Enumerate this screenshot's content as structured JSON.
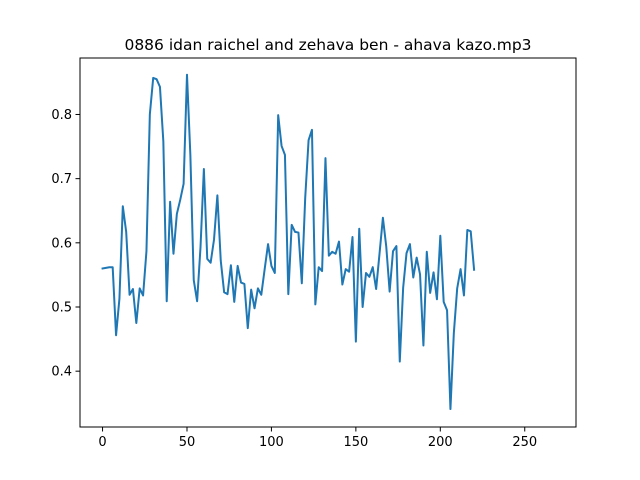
{
  "chart_data": {
    "type": "line",
    "title": "0886 idan raichel and zehava ben - ahava kazo.mp3",
    "xlabel": "",
    "ylabel": "",
    "xlim": [
      -13.35,
      280.35
    ],
    "ylim": [
      0.313,
      0.888
    ],
    "x_ticks": [
      0,
      50,
      100,
      150,
      200,
      250
    ],
    "y_ticks": [
      0.4,
      0.5,
      0.6,
      0.7,
      0.8
    ],
    "x_tick_labels": [
      "0",
      "50",
      "100",
      "150",
      "200",
      "250"
    ],
    "y_tick_labels": [
      "0.4",
      "0.5",
      "0.6",
      "0.7",
      "0.8"
    ],
    "grid": false,
    "series": [
      {
        "color": "#1f77b4",
        "x_start": 0,
        "x_step": 2,
        "values": [
          0.56,
          0.561,
          0.562,
          0.562,
          0.456,
          0.513,
          0.657,
          0.617,
          0.519,
          0.528,
          0.475,
          0.529,
          0.518,
          0.587,
          0.8,
          0.857,
          0.855,
          0.843,
          0.758,
          0.509,
          0.664,
          0.583,
          0.645,
          0.667,
          0.692,
          0.862,
          0.737,
          0.542,
          0.509,
          0.593,
          0.715,
          0.575,
          0.569,
          0.605,
          0.674,
          0.572,
          0.523,
          0.52,
          0.565,
          0.508,
          0.564,
          0.538,
          0.536,
          0.467,
          0.527,
          0.498,
          0.529,
          0.519,
          0.559,
          0.598,
          0.564,
          0.553,
          0.799,
          0.751,
          0.737,
          0.52,
          0.628,
          0.617,
          0.616,
          0.537,
          0.67,
          0.76,
          0.776,
          0.504,
          0.562,
          0.556,
          0.732,
          0.58,
          0.586,
          0.583,
          0.602,
          0.535,
          0.559,
          0.555,
          0.609,
          0.446,
          0.622,
          0.5,
          0.553,
          0.547,
          0.562,
          0.528,
          0.583,
          0.639,
          0.594,
          0.524,
          0.587,
          0.595,
          0.415,
          0.53,
          0.584,
          0.598,
          0.546,
          0.577,
          0.551,
          0.44,
          0.586,
          0.522,
          0.554,
          0.512,
          0.611,
          0.508,
          0.495,
          0.341,
          0.459,
          0.529,
          0.559,
          0.518,
          0.62,
          0.618,
          0.558
        ]
      }
    ]
  }
}
